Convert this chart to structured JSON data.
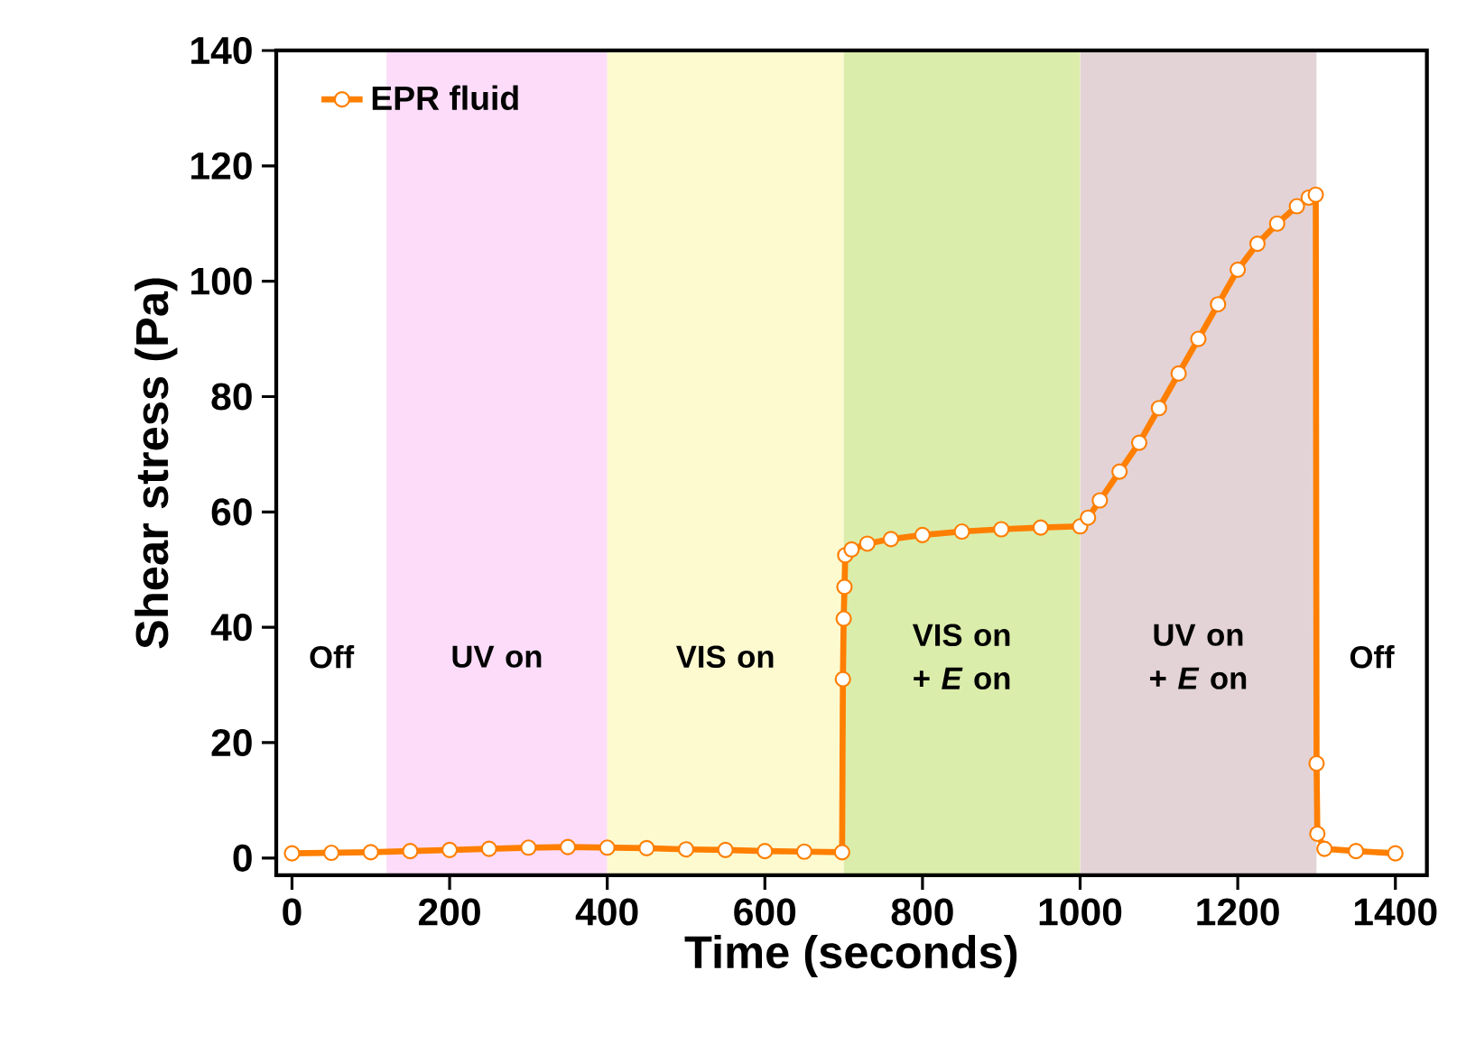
{
  "chart_data": {
    "type": "line",
    "xlabel": "Time (seconds)",
    "ylabel": "Shear stress (Pa)",
    "xlim": [
      -20,
      1440
    ],
    "ylim": [
      -3,
      140
    ],
    "xticks": [
      0,
      200,
      400,
      600,
      800,
      1000,
      1200,
      1400
    ],
    "yticks": [
      0,
      20,
      40,
      60,
      80,
      100,
      120,
      140
    ],
    "grid": false,
    "legend": "top left",
    "marker": "circle",
    "line_style": "solid",
    "series": [
      {
        "name": "EPR fluid",
        "color": "#ff7f00",
        "x": [
          0,
          50,
          100,
          150,
          200,
          250,
          300,
          350,
          400,
          450,
          500,
          550,
          600,
          650,
          698,
          699,
          700,
          701,
          702,
          710,
          730,
          760,
          800,
          850,
          900,
          950,
          1000,
          1010,
          1025,
          1050,
          1075,
          1100,
          1125,
          1150,
          1175,
          1200,
          1225,
          1250,
          1275,
          1290,
          1299,
          1300,
          1301,
          1310,
          1350,
          1400
        ],
        "values": [
          0.8,
          0.9,
          1.0,
          1.2,
          1.4,
          1.6,
          1.8,
          1.9,
          1.8,
          1.7,
          1.5,
          1.4,
          1.2,
          1.1,
          1.0,
          31,
          41.5,
          47,
          52.5,
          53.5,
          54.5,
          55.3,
          56,
          56.6,
          57,
          57.3,
          57.5,
          59,
          62,
          67,
          72,
          78,
          84,
          90,
          96,
          102,
          106.5,
          110,
          113,
          114.5,
          115,
          16.4,
          4.2,
          1.6,
          1.2,
          0.8
        ]
      }
    ],
    "bands": [
      {
        "axis": "x",
        "from": 120,
        "to": 400,
        "label": "UV on",
        "color": "#fcdcf9"
      },
      {
        "axis": "x",
        "from": 400,
        "to": 700,
        "label": "VIS on",
        "color": "#fdfad0"
      },
      {
        "axis": "x",
        "from": 700,
        "to": 1000,
        "label": "VIS on + *E* on",
        "color": "#dbedab"
      },
      {
        "axis": "x",
        "from": 1000,
        "to": 1300,
        "label": "UV on + *E* on",
        "color": "#e3d3d6"
      }
    ],
    "annotations": [
      "Off",
      "Off"
    ]
  }
}
